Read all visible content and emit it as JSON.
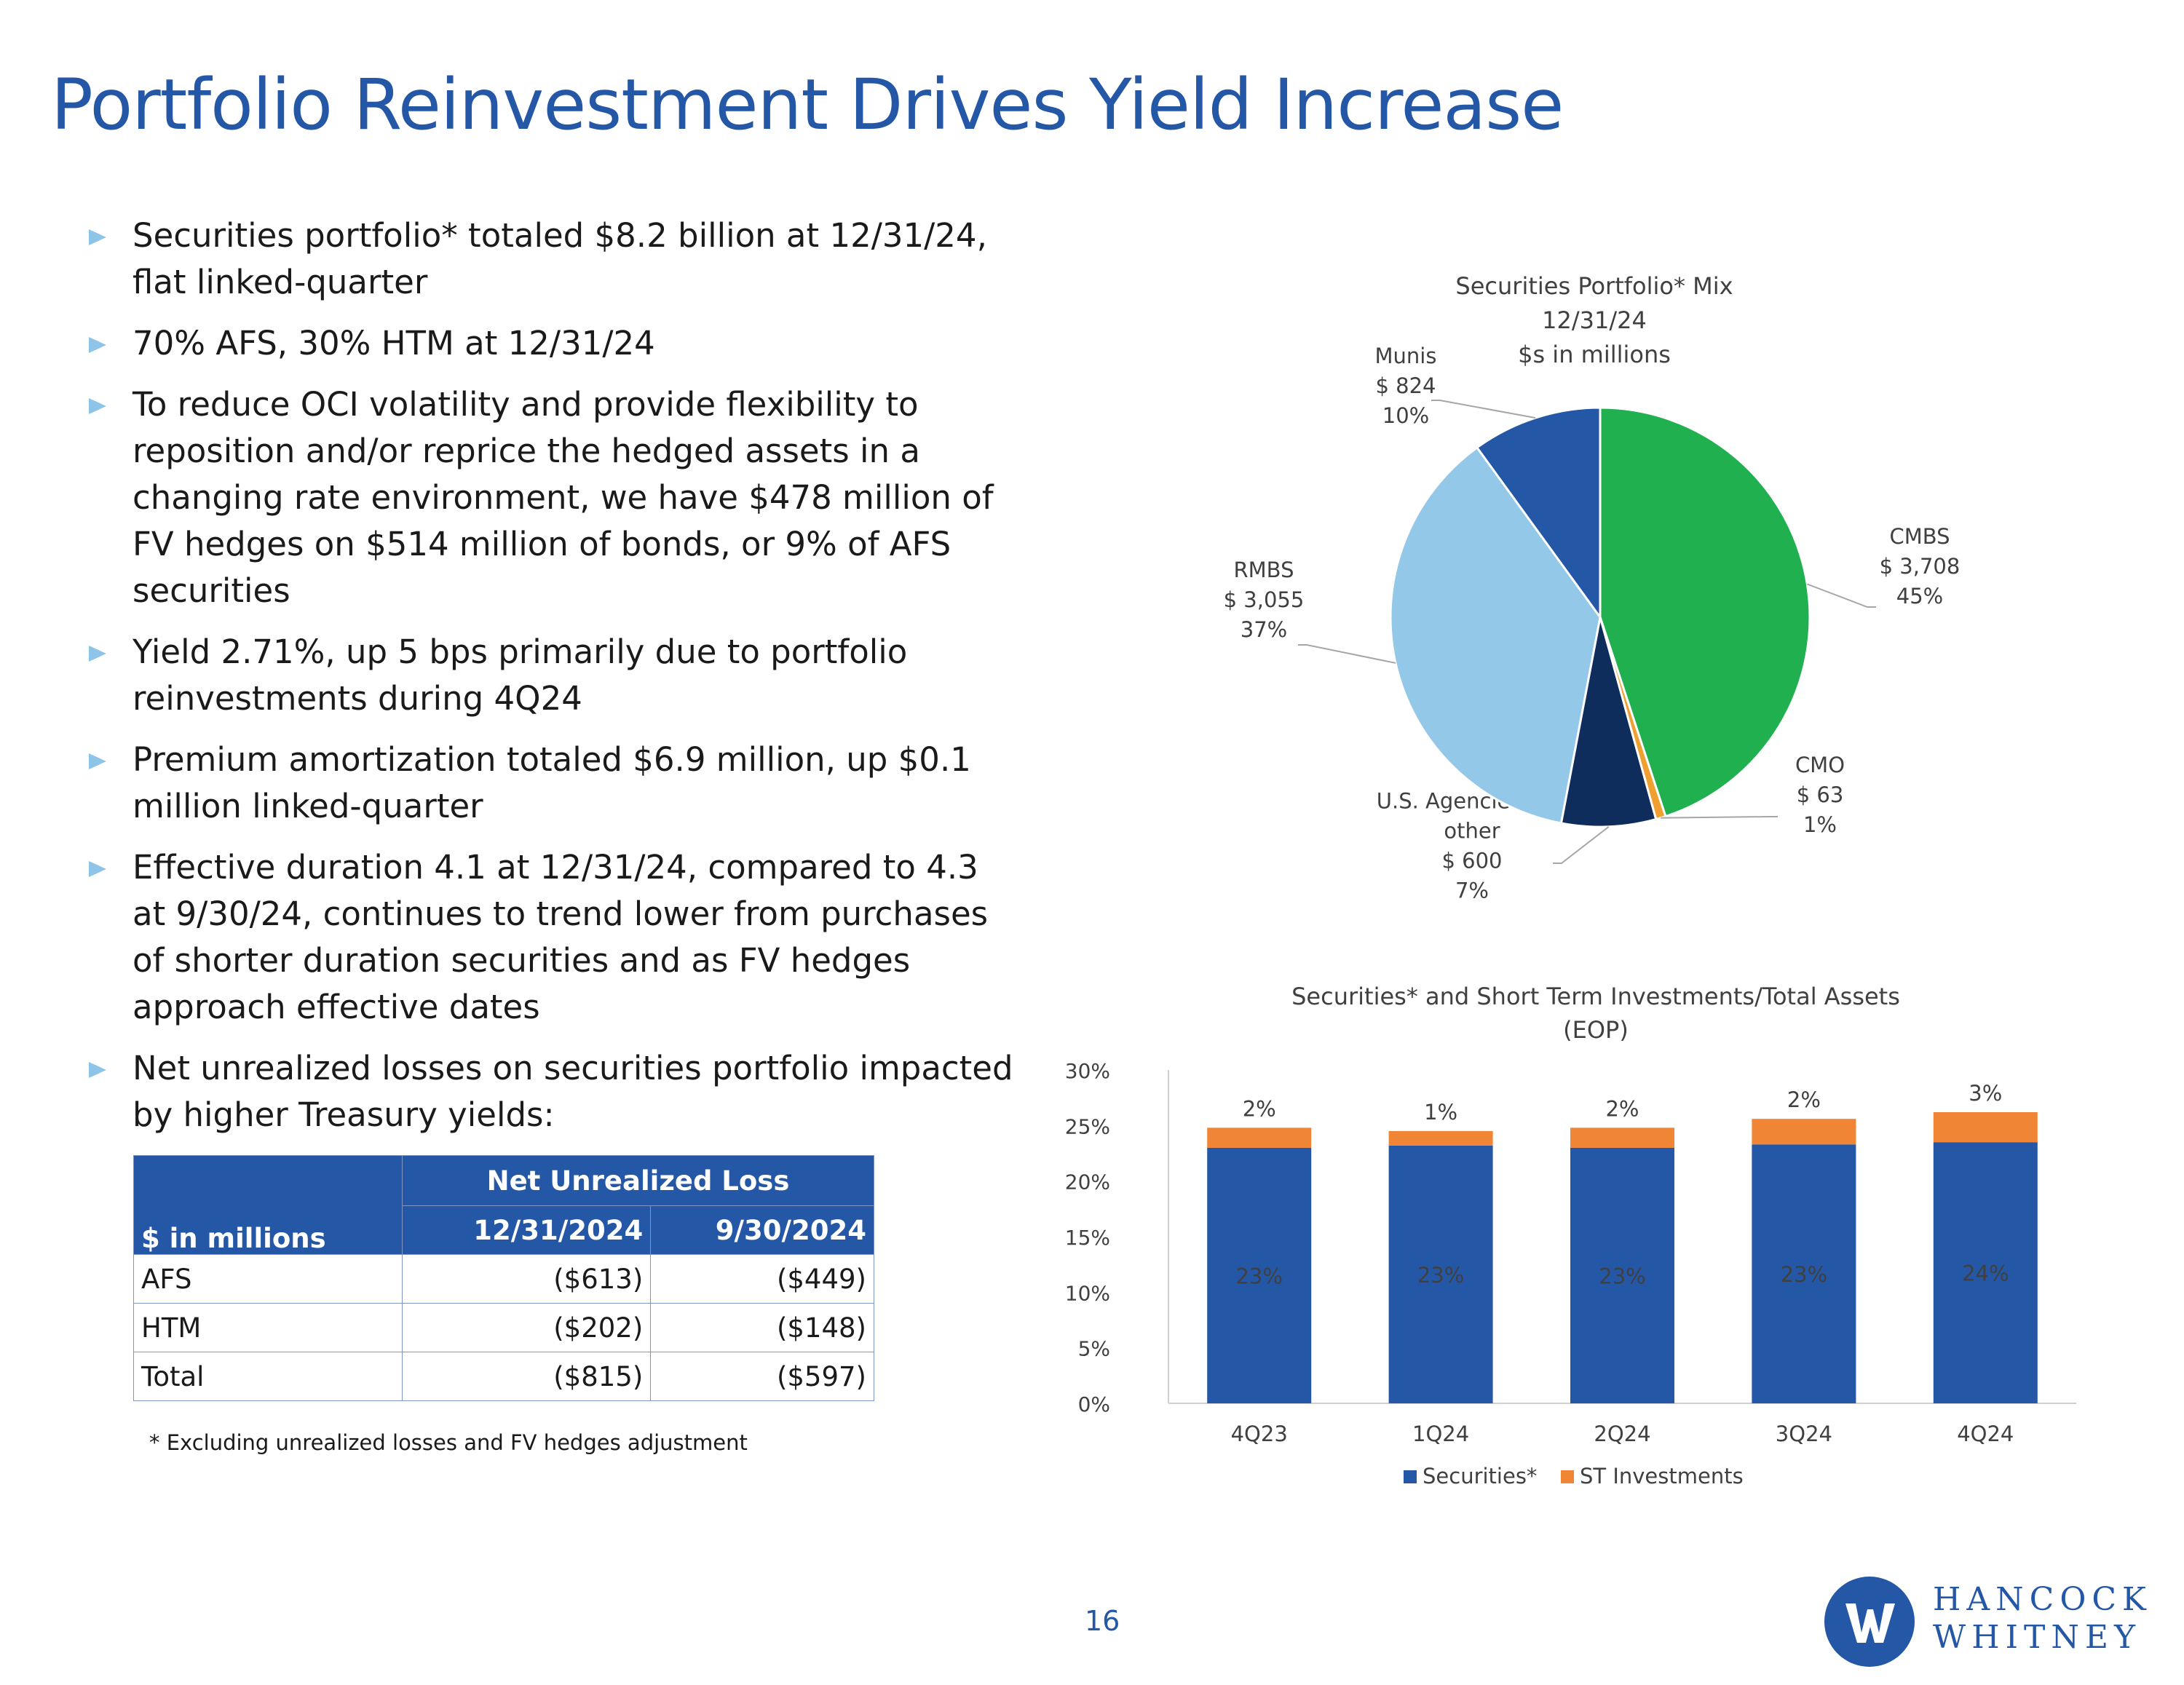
{
  "title": "Portfolio Reinvestment Drives Yield Increase",
  "bullets": [
    "Securities portfolio* totaled $8.2 billion at 12/31/24, flat linked-quarter",
    "70% AFS, 30% HTM at 12/31/24",
    "To reduce OCI volatility and provide flexibility to reposition and/or reprice the hedged assets in a changing rate environment, we have $478 million of FV hedges on $514 million of bonds, or 9% of AFS securities",
    "Yield 2.71%, up 5 bps primarily due to portfolio reinvestments during 4Q24",
    "Premium amortization totaled $6.9 million, up $0.1 million linked-quarter",
    "Effective duration 4.1 at 12/31/24, compared to 4.3 at 9/30/24, continues to trend lower from purchases of shorter duration securities and as FV hedges approach effective dates",
    "Net unrealized losses on securities portfolio impacted by higher Treasury yields:"
  ],
  "loss_table": {
    "group_header": "Net Unrealized Loss",
    "corner_label": "$ in millions",
    "columns": [
      "12/31/2024",
      "9/30/2024"
    ],
    "rows": [
      {
        "label": "AFS",
        "values": [
          "($613)",
          "($449)"
        ]
      },
      {
        "label": "HTM",
        "values": [
          "($202)",
          "($148)"
        ]
      },
      {
        "label": "Total",
        "values": [
          "($815)",
          "($597)"
        ]
      }
    ]
  },
  "footnote": "* Excluding unrealized losses and FV hedges adjustment",
  "page_number": "16",
  "logo": {
    "line1": "HANCOCK",
    "line2": "WHITNEY"
  },
  "chart_data": [
    {
      "type": "pie",
      "title": [
        "Securities Portfolio* Mix",
        "12/31/24",
        "$s in millions"
      ],
      "slices": [
        {
          "name": "CMBS",
          "amount": "$ 3,708",
          "pct": "45%",
          "value": 3708,
          "color": "#20b050"
        },
        {
          "name": "CMO",
          "amount": "$ 63",
          "pct": "1%",
          "value": 63,
          "color": "#f0a030"
        },
        {
          "name": "U.S. Agencies and other",
          "amount": "$ 600",
          "pct": "7%",
          "value": 600,
          "color": "#0f2d5c"
        },
        {
          "name": "RMBS",
          "amount": "$ 3,055",
          "pct": "37%",
          "value": 3055,
          "color": "#93c8e8"
        },
        {
          "name": "Munis",
          "amount": "$ 824",
          "pct": "10%",
          "value": 824,
          "color": "#2457a5"
        }
      ]
    },
    {
      "type": "bar",
      "stacked": true,
      "title": [
        "Securities* and Short Term Investments/Total Assets",
        "(EOP)"
      ],
      "categories": [
        "4Q23",
        "1Q24",
        "2Q24",
        "3Q24",
        "4Q24"
      ],
      "series": [
        {
          "name": "Securities*",
          "values": [
            23.0,
            23.2,
            23.0,
            23.3,
            23.5
          ],
          "labels": [
            "23%",
            "23%",
            "23%",
            "23%",
            "24%"
          ],
          "color": "#2457a5"
        },
        {
          "name": "ST Investments",
          "values": [
            1.8,
            1.3,
            1.8,
            2.3,
            2.7
          ],
          "labels": [
            "2%",
            "1%",
            "2%",
            "2%",
            "3%"
          ],
          "color": "#f08536"
        }
      ],
      "ylim": [
        0,
        30
      ],
      "yticks": [
        "0%",
        "5%",
        "10%",
        "15%",
        "20%",
        "25%",
        "30%"
      ],
      "grid": false,
      "legend": "bottom"
    }
  ]
}
